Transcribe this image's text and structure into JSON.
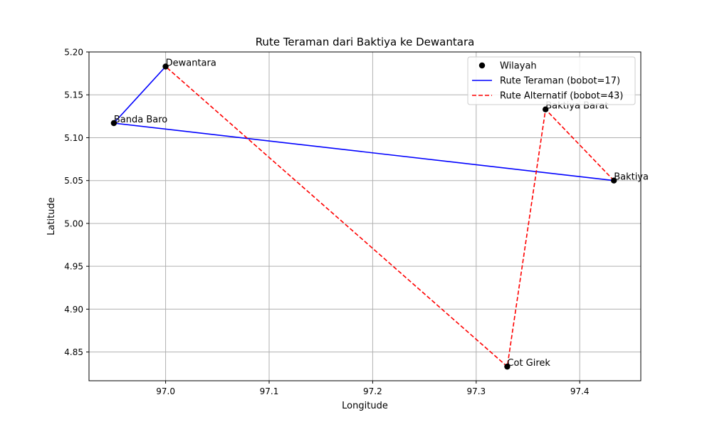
{
  "chart_data": {
    "type": "scatter",
    "title": "Rute Teraman dari Baktiya ke Dewantara",
    "xlabel": "Longitude",
    "ylabel": "Latitude",
    "xlim": [
      96.926,
      97.459
    ],
    "ylim": [
      4.8165,
      5.2
    ],
    "x_ticks": [
      "97.0",
      "97.1",
      "97.2",
      "97.3",
      "97.4"
    ],
    "y_ticks": [
      "4.85",
      "4.90",
      "4.95",
      "5.00",
      "5.05",
      "5.10",
      "5.15",
      "5.20"
    ],
    "grid": true,
    "legend_position": "top-right",
    "points": [
      {
        "name": "Dewantara",
        "x": 97.0,
        "y": 5.183
      },
      {
        "name": "Banda Baro",
        "x": 96.95,
        "y": 5.117
      },
      {
        "name": "Baktiya Barat",
        "x": 97.367,
        "y": 5.133
      },
      {
        "name": "Baktiya",
        "x": 97.433,
        "y": 5.05
      },
      {
        "name": "Cot Girek",
        "x": 97.33,
        "y": 4.833
      }
    ],
    "series": [
      {
        "name": "Wilayah",
        "style": "scatter",
        "color": "#000000"
      },
      {
        "name": "Rute Teraman (bobot=17)",
        "style": "solid",
        "color": "#0000ff",
        "route": [
          "Baktiya",
          "Banda Baro",
          "Dewantara"
        ]
      },
      {
        "name": "Rute Alternatif (bobot=43)",
        "style": "dashed",
        "color": "#ff0000",
        "route": [
          "Baktiya",
          "Baktiya Barat",
          "Cot Girek",
          "Dewantara"
        ]
      }
    ]
  }
}
